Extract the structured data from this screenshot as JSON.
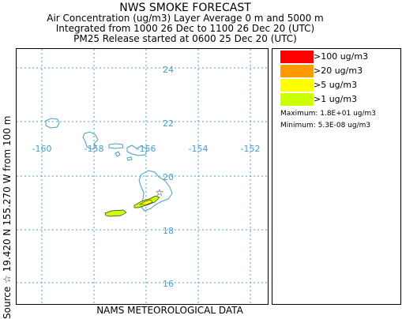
{
  "header": {
    "title": "NWS SMOKE FORECAST",
    "line2": "Air Concentration (ug/m3) Layer Average    0 m and  5000 m",
    "line3": "Integrated from 1000 26 Dec to 1100 26 Dec 20 (UTC)",
    "line4": "PM25 Release started at 0600 25 Dec 20 (UTC)"
  },
  "side_caption": "Source ☆  19.420  N 155.270  W     from  100 m",
  "bottom_caption": "NAMS METEOROLOGICAL DATA",
  "map": {
    "lon_labels": [
      "-160",
      "-158",
      "-156",
      "-154",
      "-152"
    ],
    "lat_labels": [
      "24",
      "22",
      "20",
      "18",
      "16"
    ],
    "grid_color": "#4a9cc8",
    "coast_color": "#4a9cc8",
    "source_marker": "star-icon"
  },
  "legend": {
    "items": [
      {
        "label": ">100 ug/m3",
        "color": "#ff0000"
      },
      {
        "label": ">20 ug/m3",
        "color": "#ff9900"
      },
      {
        "label": ">5 ug/m3",
        "color": "#ffff00"
      },
      {
        "label": ">1 ug/m3",
        "color": "#ccff00"
      }
    ],
    "maximum": "Maximum: 1.8E+01 ug/m3",
    "minimum": "Minimum: 5.3E-08 ug/m3"
  }
}
